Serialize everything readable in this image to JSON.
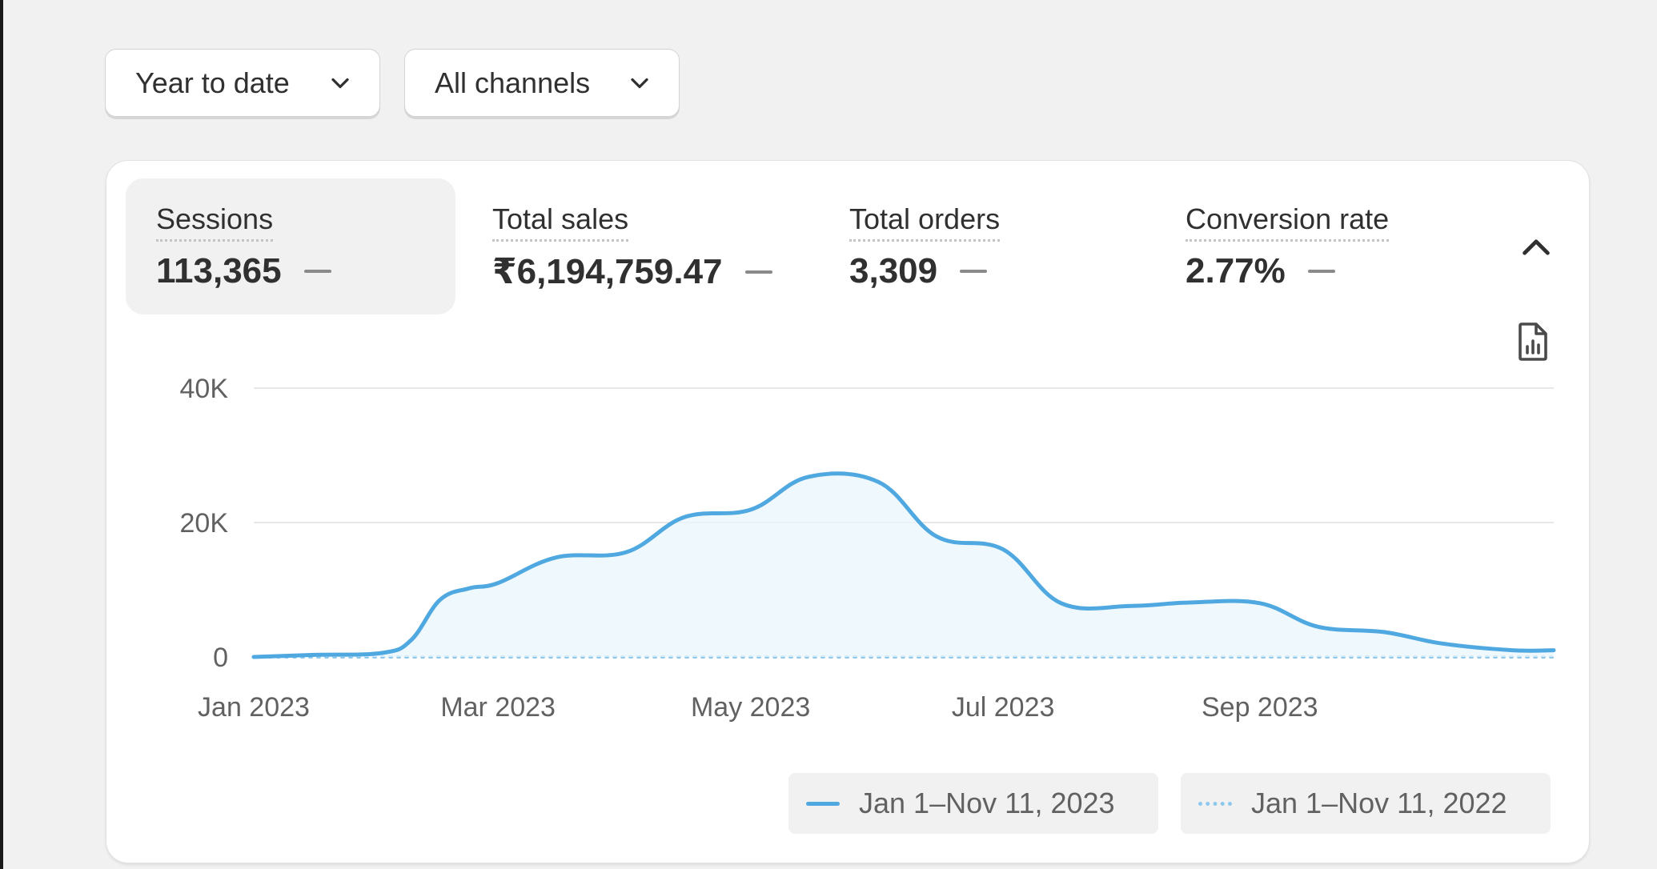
{
  "filters": {
    "date_range": "Year to date",
    "channel": "All channels"
  },
  "metrics": [
    {
      "label": "Sessions",
      "value": "113,365",
      "active": true
    },
    {
      "label": "Total sales",
      "value": "₹6,194,759.47",
      "active": false
    },
    {
      "label": "Total orders",
      "value": "3,309",
      "active": false
    },
    {
      "label": "Conversion rate",
      "value": "2.77%",
      "active": false
    }
  ],
  "icons": {
    "filter_dropdown": "chevron-down-icon",
    "collapse": "chevron-up-icon",
    "export": "chart-report-icon"
  },
  "colors": {
    "series_current": "#4fa8e0",
    "series_previous": "#8ec8ef",
    "area_fill": "#eaf5fc",
    "active_metric_bg": "#f1f1f1"
  },
  "chart_data": {
    "type": "area",
    "x": [
      "2023-01-01",
      "2023-01-15",
      "2023-02-01",
      "2023-02-08",
      "2023-02-15",
      "2023-02-22",
      "2023-03-01",
      "2023-03-15",
      "2023-04-01",
      "2023-04-15",
      "2023-05-01",
      "2023-05-15",
      "2023-06-01",
      "2023-06-15",
      "2023-07-01",
      "2023-07-15",
      "2023-08-01",
      "2023-08-15",
      "2023-09-01",
      "2023-09-15",
      "2023-10-01",
      "2023-10-15",
      "2023-11-01",
      "2023-11-11"
    ],
    "x_tick_labels": [
      "Jan 2023",
      "Mar 2023",
      "May 2023",
      "Jul 2023",
      "Sep 2023"
    ],
    "y_tick_labels": [
      "0",
      "20K",
      "40K"
    ],
    "ylim": [
      0,
      40000
    ],
    "series": [
      {
        "name": "Jan 1–Nov 11, 2023",
        "style": "solid",
        "values": [
          0,
          300,
          600,
          2500,
          8500,
          10200,
          11000,
          14800,
          15600,
          20800,
          21900,
          26800,
          26000,
          17900,
          16000,
          8000,
          7600,
          8100,
          8000,
          4500,
          3700,
          2000,
          1000,
          1000
        ]
      },
      {
        "name": "Jan 1–Nov 11, 2022",
        "style": "dotted",
        "values": [
          0,
          0,
          0,
          0,
          0,
          0,
          0,
          0,
          0,
          0,
          0,
          0,
          0,
          0,
          0,
          0,
          0,
          0,
          0,
          0,
          0,
          0,
          0,
          0
        ]
      }
    ],
    "grid": true,
    "legend_position": "bottom-right"
  }
}
